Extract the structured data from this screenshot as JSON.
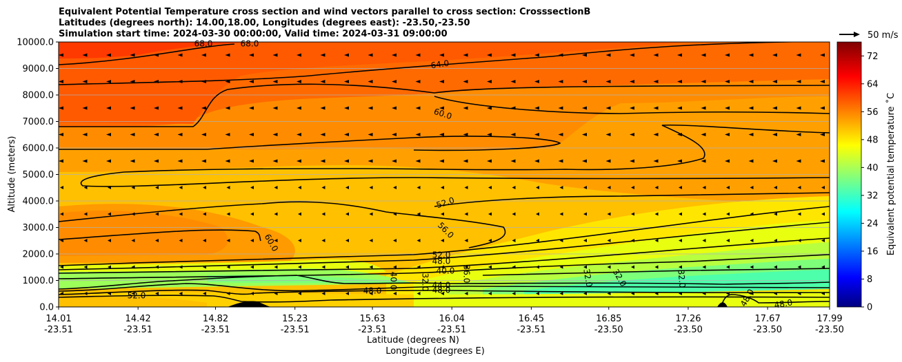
{
  "chart_data": {
    "type": "heatmap",
    "title_lines": [
      "Equivalent Potential Temperature cross section and wind vectors parallel to cross section: CrosssectionB",
      "Latitudes (degrees north): 14.00,18.00, Longitudes (degrees east): -23.50,-23.50",
      "Simulation start time: 2024-03-30 00:00:00, Valid time: 2024-03-31 09:00:00"
    ],
    "xlabel": "Latitude (degrees N)",
    "xlabel2": "Longitude (degrees E)",
    "ylabel": "Altitude (meters)",
    "colorbar_label": "Equivalent potential temperature ˚C",
    "quiver_key": "50 m/s",
    "ylim": [
      0,
      10000
    ],
    "grid": "horizontal",
    "y_ticks": [
      "0.0",
      "1000.0",
      "2000.0",
      "3000.0",
      "4000.0",
      "5000.0",
      "6000.0",
      "7000.0",
      "8000.0",
      "9000.0",
      "10000.0"
    ],
    "x_ticks": [
      {
        "lat": "14.01",
        "lon": "-23.51"
      },
      {
        "lat": "14.42",
        "lon": "-23.51"
      },
      {
        "lat": "14.82",
        "lon": "-23.51"
      },
      {
        "lat": "15.23",
        "lon": "-23.51"
      },
      {
        "lat": "15.63",
        "lon": "-23.51"
      },
      {
        "lat": "16.04",
        "lon": "-23.51"
      },
      {
        "lat": "16.45",
        "lon": "-23.51"
      },
      {
        "lat": "16.85",
        "lon": "-23.50"
      },
      {
        "lat": "17.26",
        "lon": "-23.50"
      },
      {
        "lat": "17.67",
        "lon": "-23.50"
      },
      {
        "lat": "17.99",
        "lon": "-23.50"
      }
    ],
    "colorbar_ticks": [
      "0",
      "8",
      "16",
      "24",
      "32",
      "40",
      "48",
      "56",
      "64",
      "72"
    ],
    "colorbar_range": [
      0,
      76
    ],
    "contour_labels": [
      "64.0",
      "60.0",
      "52.0",
      "56.0",
      "60.0",
      "52.0",
      "48.0",
      "40.0",
      "44.0",
      "48.0",
      "36.0",
      "32.0",
      "52.0",
      "48.0",
      "40.0",
      "32.0",
      "32.0",
      "32.0",
      "48.0",
      "48.0",
      "68.0",
      "68.0"
    ]
  }
}
